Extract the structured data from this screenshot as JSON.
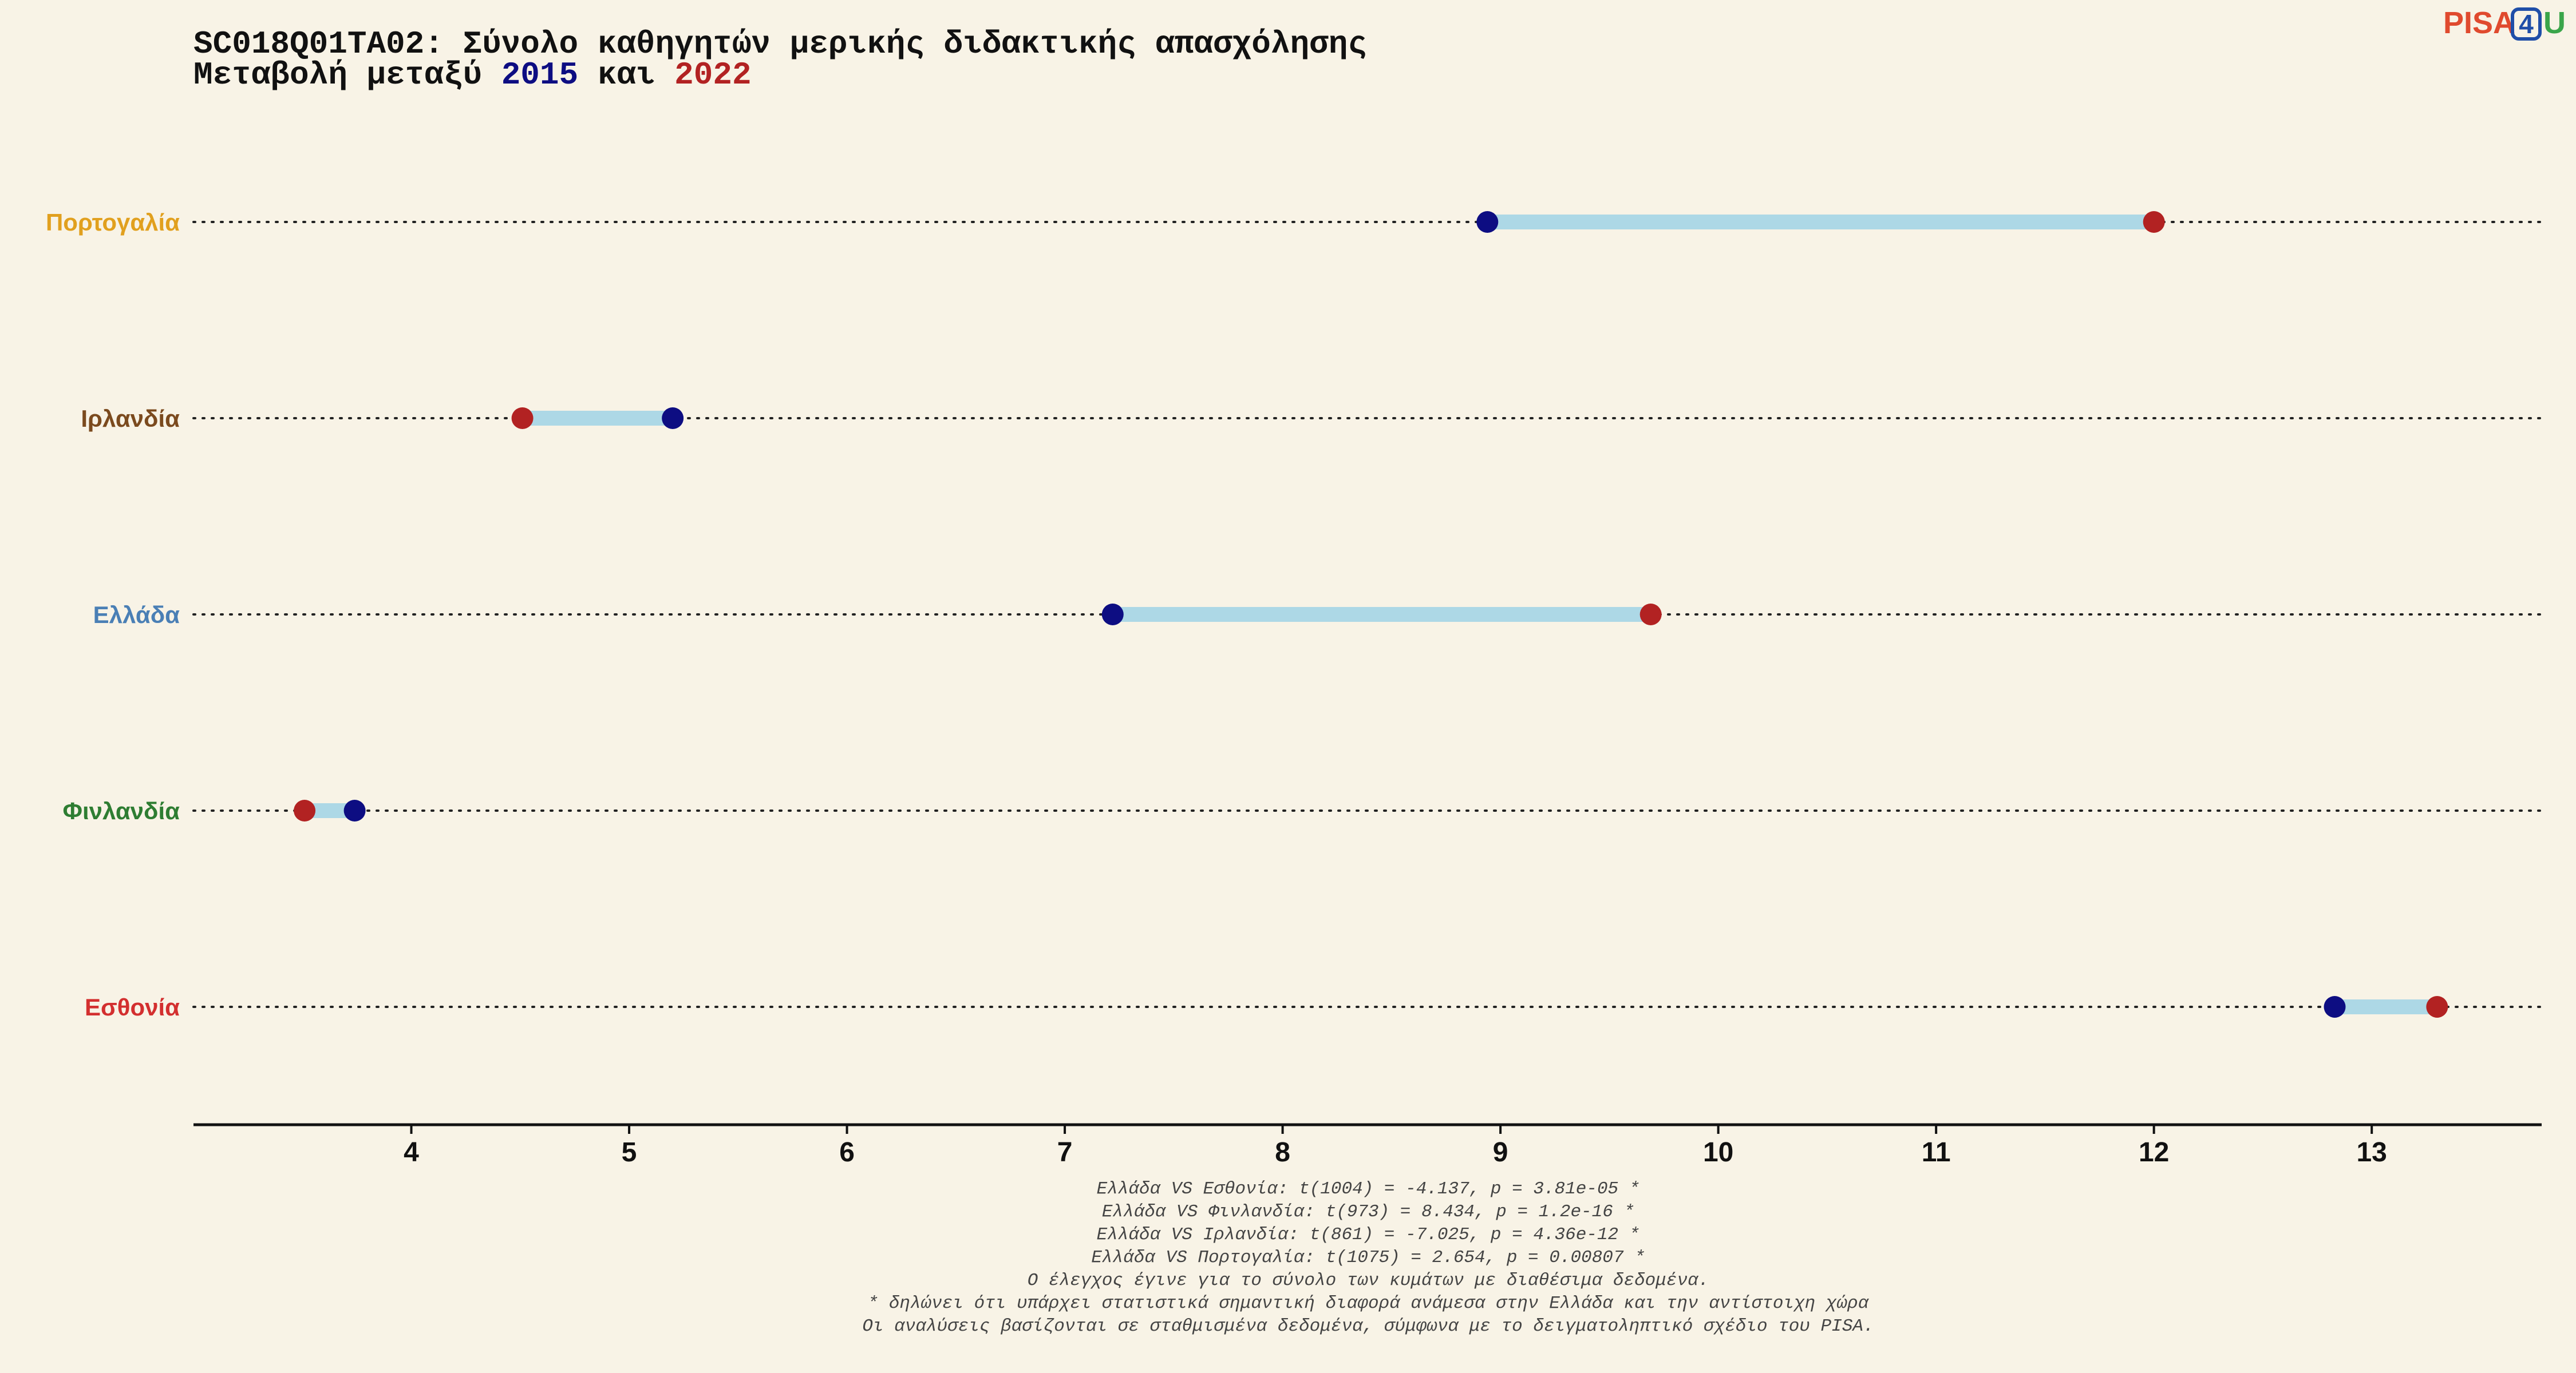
{
  "title": {
    "line1": "SC018Q01TA02: Σύνολο καθηγητών μερικής διδακτικής απασχόλησης",
    "line2_prefix": "Μεταβολή μεταξύ",
    "year_start": "2015",
    "line2_middle": "και",
    "year_end": "2022"
  },
  "logo": {
    "pisa": "PISA",
    "four": "4",
    "u": "U",
    "pisa_color": "#e04a2e",
    "four_color": "#1f4ea8",
    "u_color": "#3aa54a"
  },
  "colors": {
    "background": "#f8f3e6",
    "year_start": "#0d0d82",
    "year_end": "#b22222",
    "connector": "#add8e6",
    "text": "#111111"
  },
  "chart_data": {
    "type": "dumbbell",
    "series": [
      {
        "name": "2015",
        "color": "#0d0d82"
      },
      {
        "name": "2022",
        "color": "#b22222"
      }
    ],
    "rows": [
      {
        "country": "Πορτογαλία",
        "color": "#e1a01e",
        "v2015": 8.94,
        "v2022": 12.0
      },
      {
        "country": "Ιρλανδία",
        "color": "#7b4a1e",
        "v2015": 5.2,
        "v2022": 4.51
      },
      {
        "country": "Ελλάδα",
        "color": "#4a7fb5",
        "v2015": 7.22,
        "v2022": 9.69
      },
      {
        "country": "Φινλανδία",
        "color": "#2e7d32",
        "v2015": 3.74,
        "v2022": 3.51
      },
      {
        "country": "Εσθονία",
        "color": "#d32f2f",
        "v2015": 12.83,
        "v2022": 13.3
      }
    ],
    "xlim": [
      3.0,
      13.78
    ],
    "xticks": [
      4,
      5,
      6,
      7,
      8,
      9,
      10,
      11,
      12,
      13
    ],
    "xlabel": "",
    "ylabel": "",
    "grid": "dotted row guides",
    "legend": "none"
  },
  "notes": [
    "Ελλάδα VS Εσθονία: t(1004) = -4.137, p = 3.81e-05 *",
    "Ελλάδα VS Φινλανδία: t(973) = 8.434, p = 1.2e-16 *",
    "Ελλάδα VS Ιρλανδία: t(861) = -7.025, p = 4.36e-12 *",
    "Ελλάδα VS Πορτογαλία: t(1075) = 2.654, p = 0.00807 *",
    "Ο έλεγχος έγινε για το σύνολο των κυμάτων με διαθέσιμα δεδομένα.",
    "* δηλώνει ότι υπάρχει στατιστικά σημαντική διαφορά ανάμεσα στην Ελλάδα και την αντίστοιχη χώρα",
    "Οι αναλύσεις βασίζονται σε σταθμισμένα δεδομένα, σύμφωνα με το δειγματοληπτικό σχέδιο του PISA."
  ]
}
